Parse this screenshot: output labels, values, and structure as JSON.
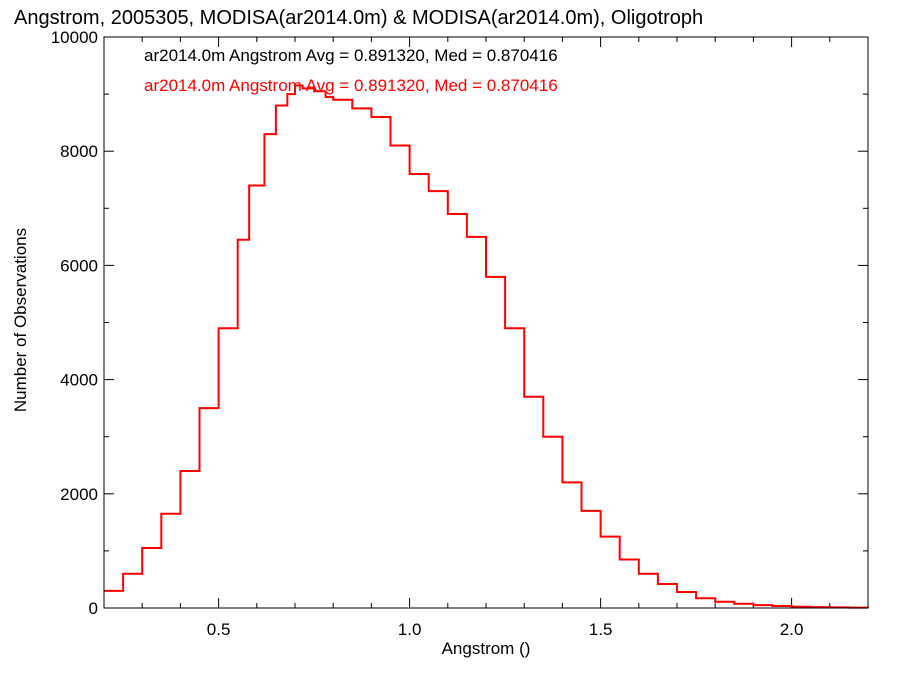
{
  "chart_data": {
    "type": "line",
    "step": true,
    "title": "Angstrom, 2005305, MODISA(ar2014.0m) & MODISA(ar2014.0m), Oligotroph",
    "xlabel": "Angstrom ()",
    "ylabel": "Number of Observations",
    "xlim": [
      0.2,
      2.2
    ],
    "ylim": [
      0,
      10000
    ],
    "xticks": [
      0.5,
      1.0,
      1.5,
      2.0
    ],
    "xtick_labels": [
      "0.5",
      "1.0",
      "1.5",
      "2.0"
    ],
    "yticks": [
      0,
      2000,
      4000,
      6000,
      8000,
      10000
    ],
    "ytick_labels": [
      "0",
      "2000",
      "4000",
      "6000",
      "8000",
      "10000"
    ],
    "grid": false,
    "annotations": [
      {
        "text": "ar2014.0m Angstrom Avg = 0.891320, Med = 0.870416",
        "color": "#000000"
      },
      {
        "text": "ar2014.0m Angstrom Avg = 0.891320, Med = 0.870416",
        "color": "#ff0000"
      }
    ],
    "series": [
      {
        "color": "#ff0000",
        "x": [
          0.2,
          0.25,
          0.3,
          0.35,
          0.4,
          0.45,
          0.5,
          0.55,
          0.58,
          0.62,
          0.65,
          0.68,
          0.7,
          0.72,
          0.75,
          0.78,
          0.8,
          0.85,
          0.9,
          0.95,
          1.0,
          1.05,
          1.1,
          1.15,
          1.2,
          1.25,
          1.3,
          1.35,
          1.4,
          1.45,
          1.5,
          1.55,
          1.6,
          1.65,
          1.7,
          1.75,
          1.8,
          1.85,
          1.9,
          1.95,
          2.0,
          2.05,
          2.1,
          2.15,
          2.2
        ],
        "y": [
          300,
          600,
          1050,
          1650,
          2400,
          3500,
          4900,
          6450,
          7400,
          8300,
          8800,
          9000,
          9150,
          9100,
          9050,
          8950,
          8900,
          8750,
          8600,
          8100,
          7600,
          7300,
          6900,
          6500,
          5800,
          4900,
          3700,
          3000,
          2200,
          1700,
          1250,
          850,
          600,
          420,
          280,
          170,
          110,
          75,
          50,
          35,
          22,
          15,
          10,
          6,
          3
        ]
      }
    ]
  }
}
